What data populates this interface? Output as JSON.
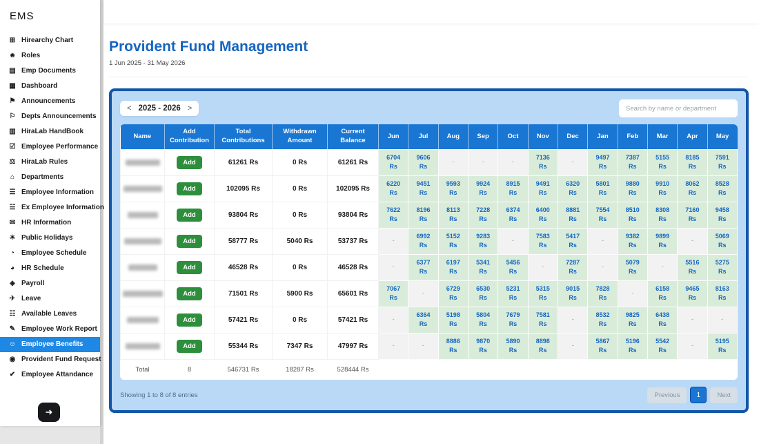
{
  "app": {
    "brand": "EMS"
  },
  "sidebar": {
    "items": [
      {
        "label": "Hirearchy Chart",
        "icon": "hierarchy-icon",
        "glyph": "⊞"
      },
      {
        "label": "Roles",
        "icon": "roles-icon",
        "glyph": "☻"
      },
      {
        "label": "Emp Documents",
        "icon": "documents-icon",
        "glyph": "▤"
      },
      {
        "label": "Dashboard",
        "icon": "dashboard-icon",
        "glyph": "▦"
      },
      {
        "label": "Announcements",
        "icon": "announcements-icon",
        "glyph": "⚑"
      },
      {
        "label": "Depts Announcements",
        "icon": "depts-announcements-icon",
        "glyph": "⚐"
      },
      {
        "label": "HiraLab HandBook",
        "icon": "handbook-icon",
        "glyph": "▥"
      },
      {
        "label": "Employee Performance",
        "icon": "performance-icon",
        "glyph": "☑"
      },
      {
        "label": "HiraLab Rules",
        "icon": "rules-icon",
        "glyph": "⚖"
      },
      {
        "label": "Departments",
        "icon": "departments-icon",
        "glyph": "⌂"
      },
      {
        "label": "Employee Information",
        "icon": "employee-info-icon",
        "glyph": "☰"
      },
      {
        "label": "Ex Employee Information",
        "icon": "ex-employee-info-icon",
        "glyph": "☱"
      },
      {
        "label": "HR Information",
        "icon": "hr-info-icon",
        "glyph": "✉"
      },
      {
        "label": "Public Holidays",
        "icon": "public-holidays-icon",
        "glyph": "☀"
      },
      {
        "label": "Employee Schedule",
        "icon": "employee-schedule-icon",
        "glyph": "◔"
      },
      {
        "label": "HR Schedule",
        "icon": "hr-schedule-icon",
        "glyph": "◕"
      },
      {
        "label": "Payroll",
        "icon": "payroll-icon",
        "glyph": "◈"
      },
      {
        "label": "Leave",
        "icon": "leave-icon",
        "glyph": "✈"
      },
      {
        "label": "Available Leaves",
        "icon": "available-leaves-icon",
        "glyph": "☷"
      },
      {
        "label": "Employee Work Report",
        "icon": "work-report-icon",
        "glyph": "✎"
      },
      {
        "label": "Employee Benefits",
        "icon": "employee-benefits-icon",
        "glyph": "☺",
        "active": true
      },
      {
        "label": "Provident Fund Request",
        "icon": "pf-request-icon",
        "glyph": "◉"
      },
      {
        "label": "Employee Attandance",
        "icon": "attendance-icon",
        "glyph": "✔"
      }
    ],
    "logout_glyph": "➜"
  },
  "header": {
    "title": "Provident Fund Management",
    "date_range": "1 Jun 2025 - 31 May 2026"
  },
  "panel": {
    "year_nav": {
      "prev": "<",
      "label": "2025 - 2026",
      "next": ">"
    },
    "search": {
      "placeholder": "Search by name or department",
      "value": ""
    },
    "table": {
      "fixed_headers": [
        "Name",
        "Add Contribution",
        "Total Contributions",
        "Withdrawn Amount",
        "Current Balance"
      ],
      "month_headers": [
        "Jun",
        "Jul",
        "Aug",
        "Sep",
        "Oct",
        "Nov",
        "Dec",
        "Jan",
        "Feb",
        "Mar",
        "Apr",
        "May"
      ],
      "add_button_label": "Add",
      "currency": "Rs",
      "rows": [
        {
          "total": "61261 Rs",
          "withdrawn": "0 Rs",
          "balance": "61261 Rs",
          "months": [
            "6704",
            "9606",
            null,
            null,
            null,
            "7136",
            null,
            "9497",
            "7387",
            "5155",
            "8185",
            "7591"
          ]
        },
        {
          "total": "102095 Rs",
          "withdrawn": "0 Rs",
          "balance": "102095 Rs",
          "months": [
            "6220",
            "9451",
            "9593",
            "9924",
            "8915",
            "9491",
            "6320",
            "5801",
            "9880",
            "9910",
            "8062",
            "8528"
          ]
        },
        {
          "total": "93804 Rs",
          "withdrawn": "0 Rs",
          "balance": "93804 Rs",
          "months": [
            "7622",
            "8196",
            "8113",
            "7228",
            "6374",
            "6400",
            "8881",
            "7554",
            "8510",
            "8308",
            "7160",
            "9458"
          ]
        },
        {
          "total": "58777 Rs",
          "withdrawn": "5040 Rs",
          "balance": "53737 Rs",
          "months": [
            null,
            "6992",
            "5152",
            "9283",
            null,
            "7583",
            "5417",
            null,
            "9382",
            "9899",
            null,
            "5069"
          ]
        },
        {
          "total": "46528 Rs",
          "withdrawn": "0 Rs",
          "balance": "46528 Rs",
          "months": [
            null,
            "6377",
            "6197",
            "5341",
            "5456",
            null,
            "7287",
            null,
            "5079",
            null,
            "5516",
            "5275"
          ]
        },
        {
          "total": "71501 Rs",
          "withdrawn": "5900 Rs",
          "balance": "65601 Rs",
          "months": [
            "7067",
            null,
            "6729",
            "6530",
            "5231",
            "5315",
            "9015",
            "7828",
            null,
            "6158",
            "9465",
            "8163"
          ]
        },
        {
          "total": "57421 Rs",
          "withdrawn": "0 Rs",
          "balance": "57421 Rs",
          "months": [
            null,
            "6364",
            "5198",
            "5804",
            "7679",
            "7581",
            null,
            "8532",
            "9825",
            "6438",
            null,
            null
          ]
        },
        {
          "total": "55344 Rs",
          "withdrawn": "7347 Rs",
          "balance": "47997 Rs",
          "months": [
            null,
            null,
            "8886",
            "9870",
            "5890",
            "8898",
            null,
            "5867",
            "5196",
            "5542",
            null,
            "5195"
          ]
        }
      ],
      "totals": {
        "label": "Total",
        "count": "8",
        "total": "546731 Rs",
        "withdrawn": "18287 Rs",
        "balance": "528444 Rs"
      }
    },
    "footer": {
      "showing": "Showing 1 to 8 of 8 entries",
      "pagination": {
        "prev": "Previous",
        "page": "1",
        "next": "Next"
      }
    }
  },
  "colors": {
    "accent_blue": "#1976d2",
    "panel_border": "#1256a8",
    "panel_bg": "#bad9f7",
    "active_item": "#1e88e5",
    "add_green": "#2d8f3c",
    "filled_cell_bg": "#d9ecda",
    "month_text": "#1565c0"
  }
}
